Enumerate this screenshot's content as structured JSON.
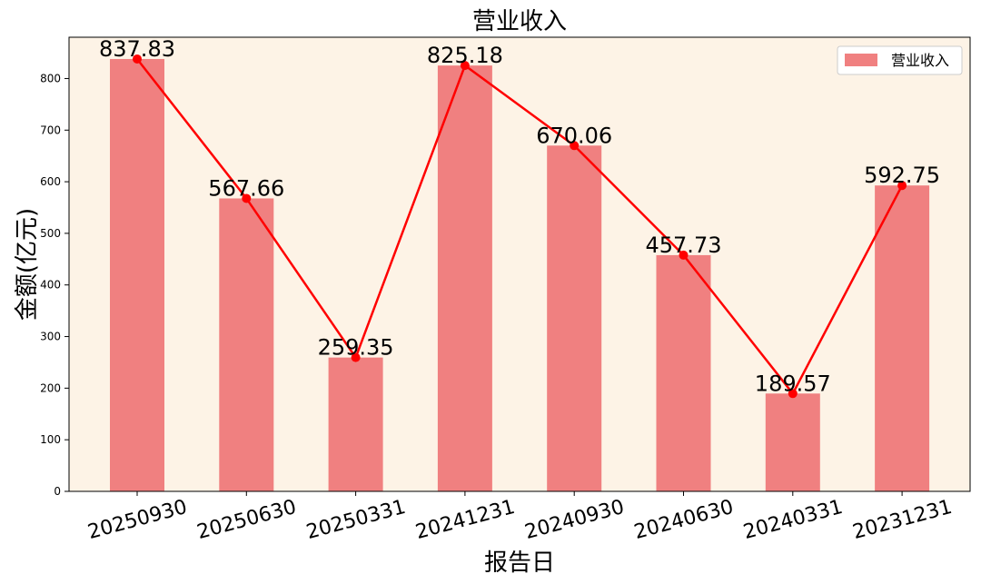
{
  "chart_data": {
    "type": "bar",
    "title": "营业收入",
    "xlabel": "报告日",
    "ylabel": "金额(亿元)",
    "categories": [
      "20250930",
      "20250630",
      "20250331",
      "20241231",
      "20240930",
      "20240630",
      "20240331",
      "20231231"
    ],
    "series": [
      {
        "name": "营业收入",
        "values": [
          837.83,
          567.66,
          259.35,
          825.18,
          670.06,
          457.73,
          189.57,
          592.75
        ]
      }
    ],
    "data_labels": [
      "837.83",
      "567.66",
      "259.35",
      "825.18",
      "670.06",
      "457.73",
      "189.57",
      "592.75"
    ],
    "yticks": [
      0,
      100,
      200,
      300,
      400,
      500,
      600,
      700,
      800
    ],
    "ylim": [
      0,
      880
    ],
    "grid": false,
    "legend_position": "top-right",
    "overlay_line": true,
    "colors": {
      "bar": "#f08080",
      "line": "#ff0000",
      "background": "#fdf3e6",
      "legend_border": "#cccccc"
    }
  }
}
